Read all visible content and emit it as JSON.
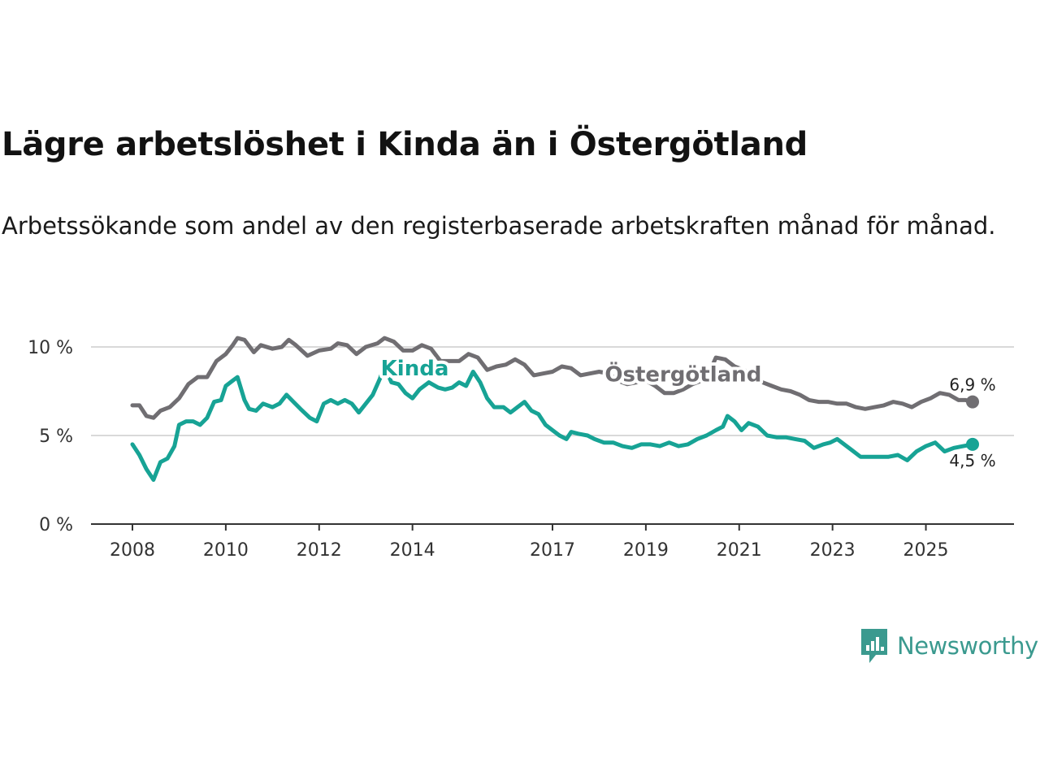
{
  "title": "Lägre arbetslöshet i Kinda än i Östergötland",
  "subtitle": "Arbetssökande som andel av den registerbaserade arbetskraften månad för månad.",
  "brand": {
    "name": "Newsworthy"
  },
  "chart_data": {
    "type": "line",
    "title": "Lägre arbetslöshet i Kinda än i Östergötland",
    "xlabel": "",
    "ylabel": "",
    "ylim": [
      0,
      10
    ],
    "xlim": [
      2008.0,
      2026.0
    ],
    "grid": true,
    "y_ticks": [
      {
        "value": 0,
        "label": "0 %"
      },
      {
        "value": 5,
        "label": "5 %"
      },
      {
        "value": 10,
        "label": "10 %"
      }
    ],
    "x_ticks": [
      {
        "value": 2008,
        "label": "2008"
      },
      {
        "value": 2010,
        "label": "2010"
      },
      {
        "value": 2012,
        "label": "2012"
      },
      {
        "value": 2014,
        "label": "2014"
      },
      {
        "value": 2017,
        "label": "2017"
      },
      {
        "value": 2019,
        "label": "2019"
      },
      {
        "value": 2021,
        "label": "2021"
      },
      {
        "value": 2023,
        "label": "2023"
      },
      {
        "value": 2025,
        "label": "2025"
      }
    ],
    "series": [
      {
        "name": "Östergötland",
        "color": "#706e72",
        "end_label": "6,9 %",
        "points": [
          [
            2008.0,
            6.7
          ],
          [
            2008.15,
            6.7
          ],
          [
            2008.3,
            6.1
          ],
          [
            2008.45,
            6.0
          ],
          [
            2008.6,
            6.4
          ],
          [
            2008.8,
            6.6
          ],
          [
            2009.0,
            7.1
          ],
          [
            2009.2,
            7.9
          ],
          [
            2009.4,
            8.3
          ],
          [
            2009.6,
            8.3
          ],
          [
            2009.8,
            9.2
          ],
          [
            2010.0,
            9.6
          ],
          [
            2010.15,
            10.1
          ],
          [
            2010.25,
            10.5
          ],
          [
            2010.4,
            10.4
          ],
          [
            2010.6,
            9.7
          ],
          [
            2010.75,
            10.1
          ],
          [
            2011.0,
            9.9
          ],
          [
            2011.2,
            10.0
          ],
          [
            2011.35,
            10.4
          ],
          [
            2011.5,
            10.1
          ],
          [
            2011.75,
            9.5
          ],
          [
            2012.0,
            9.8
          ],
          [
            2012.25,
            9.9
          ],
          [
            2012.4,
            10.2
          ],
          [
            2012.6,
            10.1
          ],
          [
            2012.8,
            9.6
          ],
          [
            2013.0,
            10.0
          ],
          [
            2013.25,
            10.2
          ],
          [
            2013.4,
            10.5
          ],
          [
            2013.6,
            10.3
          ],
          [
            2013.8,
            9.8
          ],
          [
            2014.0,
            9.8
          ],
          [
            2014.2,
            10.1
          ],
          [
            2014.4,
            9.9
          ],
          [
            2014.6,
            9.2
          ],
          [
            2014.8,
            9.2
          ],
          [
            2015.0,
            9.2
          ],
          [
            2015.2,
            9.6
          ],
          [
            2015.4,
            9.4
          ],
          [
            2015.6,
            8.7
          ],
          [
            2015.8,
            8.9
          ],
          [
            2016.0,
            9.0
          ],
          [
            2016.2,
            9.3
          ],
          [
            2016.4,
            9.0
          ],
          [
            2016.6,
            8.4
          ],
          [
            2016.8,
            8.5
          ],
          [
            2017.0,
            8.6
          ],
          [
            2017.2,
            8.9
          ],
          [
            2017.4,
            8.8
          ],
          [
            2017.6,
            8.4
          ],
          [
            2017.8,
            8.5
          ],
          [
            2018.0,
            8.6
          ],
          [
            2018.2,
            8.5
          ],
          [
            2018.4,
            8.1
          ],
          [
            2018.6,
            7.9
          ],
          [
            2018.8,
            8.0
          ],
          [
            2019.0,
            8.1
          ],
          [
            2019.2,
            7.8
          ],
          [
            2019.4,
            7.4
          ],
          [
            2019.6,
            7.4
          ],
          [
            2019.8,
            7.6
          ],
          [
            2020.0,
            7.9
          ],
          [
            2020.2,
            8.1
          ],
          [
            2020.35,
            8.5
          ],
          [
            2020.5,
            9.4
          ],
          [
            2020.7,
            9.3
          ],
          [
            2020.9,
            8.9
          ],
          [
            2021.1,
            8.7
          ],
          [
            2021.3,
            8.4
          ],
          [
            2021.5,
            8.0
          ],
          [
            2021.7,
            7.8
          ],
          [
            2021.9,
            7.6
          ],
          [
            2022.1,
            7.5
          ],
          [
            2022.3,
            7.3
          ],
          [
            2022.5,
            7.0
          ],
          [
            2022.7,
            6.9
          ],
          [
            2022.9,
            6.9
          ],
          [
            2023.1,
            6.8
          ],
          [
            2023.3,
            6.8
          ],
          [
            2023.5,
            6.6
          ],
          [
            2023.7,
            6.5
          ],
          [
            2023.9,
            6.6
          ],
          [
            2024.1,
            6.7
          ],
          [
            2024.3,
            6.9
          ],
          [
            2024.5,
            6.8
          ],
          [
            2024.7,
            6.6
          ],
          [
            2024.9,
            6.9
          ],
          [
            2025.1,
            7.1
          ],
          [
            2025.3,
            7.4
          ],
          [
            2025.5,
            7.3
          ],
          [
            2025.7,
            7.0
          ],
          [
            2025.85,
            7.0
          ],
          [
            2026.0,
            6.9
          ]
        ]
      },
      {
        "name": "Kinda",
        "color": "#17a395",
        "end_label": "4,5 %",
        "points": [
          [
            2008.0,
            4.5
          ],
          [
            2008.15,
            3.9
          ],
          [
            2008.3,
            3.1
          ],
          [
            2008.45,
            2.5
          ],
          [
            2008.6,
            3.5
          ],
          [
            2008.75,
            3.7
          ],
          [
            2008.9,
            4.4
          ],
          [
            2009.0,
            5.6
          ],
          [
            2009.15,
            5.8
          ],
          [
            2009.3,
            5.8
          ],
          [
            2009.45,
            5.6
          ],
          [
            2009.6,
            6.0
          ],
          [
            2009.75,
            6.9
          ],
          [
            2009.9,
            7.0
          ],
          [
            2010.0,
            7.8
          ],
          [
            2010.15,
            8.1
          ],
          [
            2010.25,
            8.3
          ],
          [
            2010.4,
            7.0
          ],
          [
            2010.5,
            6.5
          ],
          [
            2010.65,
            6.4
          ],
          [
            2010.8,
            6.8
          ],
          [
            2011.0,
            6.6
          ],
          [
            2011.15,
            6.8
          ],
          [
            2011.3,
            7.3
          ],
          [
            2011.45,
            6.9
          ],
          [
            2011.6,
            6.5
          ],
          [
            2011.8,
            6.0
          ],
          [
            2011.95,
            5.8
          ],
          [
            2012.1,
            6.8
          ],
          [
            2012.25,
            7.0
          ],
          [
            2012.4,
            6.8
          ],
          [
            2012.55,
            7.0
          ],
          [
            2012.7,
            6.8
          ],
          [
            2012.85,
            6.3
          ],
          [
            2013.0,
            6.8
          ],
          [
            2013.15,
            7.3
          ],
          [
            2013.3,
            8.2
          ],
          [
            2013.4,
            8.9
          ],
          [
            2013.55,
            8.0
          ],
          [
            2013.7,
            7.9
          ],
          [
            2013.85,
            7.4
          ],
          [
            2014.0,
            7.1
          ],
          [
            2014.15,
            7.6
          ],
          [
            2014.35,
            8.0
          ],
          [
            2014.55,
            7.7
          ],
          [
            2014.7,
            7.6
          ],
          [
            2014.85,
            7.7
          ],
          [
            2015.0,
            8.0
          ],
          [
            2015.15,
            7.8
          ],
          [
            2015.3,
            8.6
          ],
          [
            2015.45,
            8.0
          ],
          [
            2015.6,
            7.1
          ],
          [
            2015.75,
            6.6
          ],
          [
            2015.95,
            6.6
          ],
          [
            2016.1,
            6.3
          ],
          [
            2016.25,
            6.6
          ],
          [
            2016.4,
            6.9
          ],
          [
            2016.55,
            6.4
          ],
          [
            2016.7,
            6.2
          ],
          [
            2016.85,
            5.6
          ],
          [
            2017.0,
            5.3
          ],
          [
            2017.15,
            5.0
          ],
          [
            2017.3,
            4.8
          ],
          [
            2017.4,
            5.2
          ],
          [
            2017.55,
            5.1
          ],
          [
            2017.75,
            5.0
          ],
          [
            2017.9,
            4.8
          ],
          [
            2018.1,
            4.6
          ],
          [
            2018.3,
            4.6
          ],
          [
            2018.5,
            4.4
          ],
          [
            2018.7,
            4.3
          ],
          [
            2018.9,
            4.5
          ],
          [
            2019.1,
            4.5
          ],
          [
            2019.3,
            4.4
          ],
          [
            2019.5,
            4.6
          ],
          [
            2019.7,
            4.4
          ],
          [
            2019.9,
            4.5
          ],
          [
            2020.1,
            4.8
          ],
          [
            2020.3,
            5.0
          ],
          [
            2020.5,
            5.3
          ],
          [
            2020.65,
            5.5
          ],
          [
            2020.75,
            6.1
          ],
          [
            2020.9,
            5.8
          ],
          [
            2021.05,
            5.3
          ],
          [
            2021.2,
            5.7
          ],
          [
            2021.4,
            5.5
          ],
          [
            2021.6,
            5.0
          ],
          [
            2021.8,
            4.9
          ],
          [
            2022.0,
            4.9
          ],
          [
            2022.2,
            4.8
          ],
          [
            2022.4,
            4.7
          ],
          [
            2022.6,
            4.3
          ],
          [
            2022.8,
            4.5
          ],
          [
            2022.95,
            4.6
          ],
          [
            2023.1,
            4.8
          ],
          [
            2023.25,
            4.5
          ],
          [
            2023.4,
            4.2
          ],
          [
            2023.6,
            3.8
          ],
          [
            2023.8,
            3.8
          ],
          [
            2024.0,
            3.8
          ],
          [
            2024.2,
            3.8
          ],
          [
            2024.4,
            3.9
          ],
          [
            2024.6,
            3.6
          ],
          [
            2024.8,
            4.1
          ],
          [
            2025.0,
            4.4
          ],
          [
            2025.2,
            4.6
          ],
          [
            2025.4,
            4.1
          ],
          [
            2025.6,
            4.3
          ],
          [
            2025.8,
            4.4
          ],
          [
            2026.0,
            4.5
          ]
        ]
      }
    ]
  }
}
